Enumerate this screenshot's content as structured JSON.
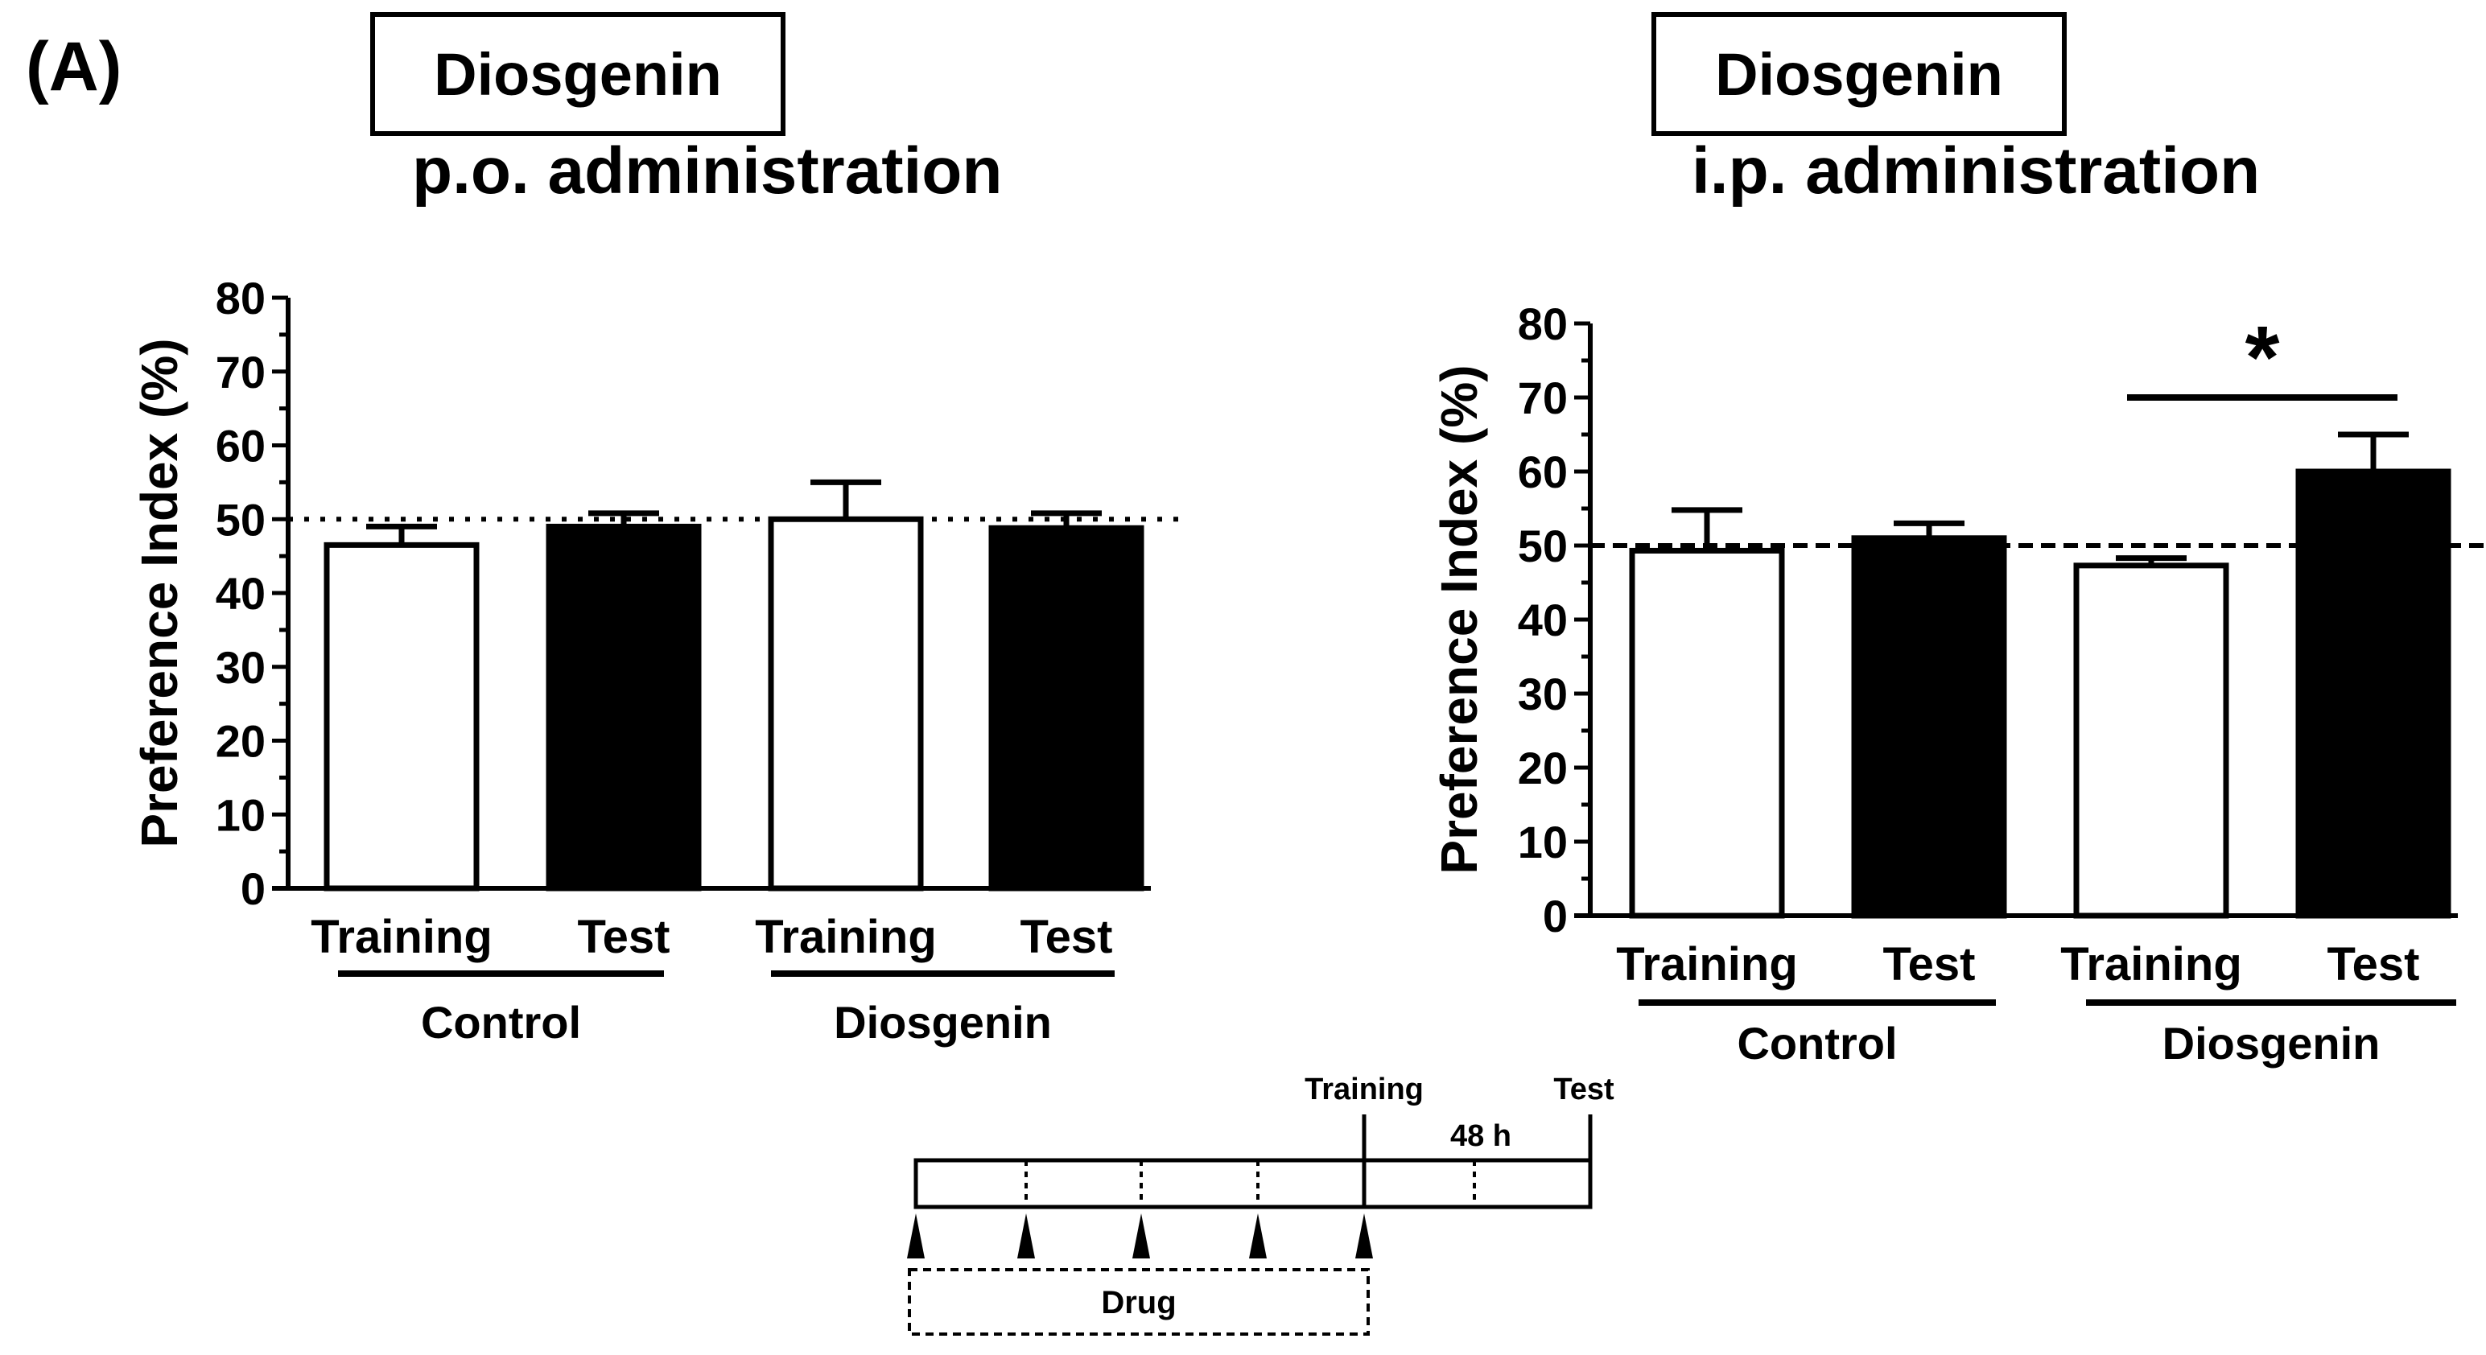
{
  "panel_label": "(A)",
  "chart_data": [
    {
      "type": "bar",
      "drug_box": "Diosgenin",
      "route": "p.o. administration",
      "ylabel": "Preference Index (%)",
      "ylim": [
        0,
        80
      ],
      "yticks": [
        "0",
        "10",
        "20",
        "30",
        "40",
        "50",
        "60",
        "70",
        "80"
      ],
      "reference_line": 50,
      "reference_style": "dotted",
      "categories": [
        "Training",
        "Test",
        "Training",
        "Test"
      ],
      "groups": [
        "Control",
        "Diosgenin"
      ],
      "values": [
        46.5,
        49,
        50,
        48.8
      ],
      "errors": [
        2.5,
        1.8,
        5,
        2
      ],
      "fills": [
        "white",
        "black",
        "white",
        "black"
      ],
      "significance": null
    },
    {
      "type": "bar",
      "drug_box": "Diosgenin",
      "route": "i.p. administration",
      "ylabel": "Preference Index (%)",
      "ylim": [
        0,
        80
      ],
      "yticks": [
        "0",
        "10",
        "20",
        "30",
        "40",
        "50",
        "60",
        "70",
        "80"
      ],
      "reference_line": 50,
      "reference_style": "dashed",
      "categories": [
        "Training",
        "Test",
        "Training",
        "Test"
      ],
      "groups": [
        "Control",
        "Diosgenin"
      ],
      "values": [
        49.3,
        51,
        47.3,
        60
      ],
      "errors": [
        5.5,
        2,
        1,
        5
      ],
      "fills": [
        "white",
        "black",
        "white",
        "black"
      ],
      "significance": {
        "from_bar": 2,
        "to_bar": 3,
        "label": "*"
      }
    }
  ],
  "timeline": {
    "training_label": "Training",
    "test_label": "Test",
    "interval_label": "48 h",
    "drug_label": "Drug"
  }
}
